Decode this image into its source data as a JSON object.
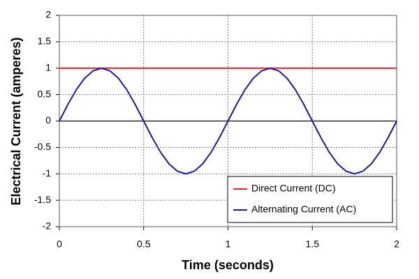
{
  "chart_data": {
    "type": "line",
    "x_label": "Time (seconds)",
    "y_label": "Electrical Current (amperes)",
    "x": [
      0,
      0.05,
      0.1,
      0.15,
      0.2,
      0.25,
      0.3,
      0.35,
      0.4,
      0.45,
      0.5,
      0.55,
      0.6,
      0.65,
      0.7,
      0.75,
      0.8,
      0.85,
      0.9,
      0.95,
      1,
      1.05,
      1.1,
      1.15,
      1.2,
      1.25,
      1.3,
      1.35,
      1.4,
      1.45,
      1.5,
      1.55,
      1.6,
      1.65,
      1.7,
      1.75,
      1.8,
      1.85,
      1.9,
      1.95,
      2
    ],
    "series": [
      {
        "name": "Direct Current (DC)",
        "color": "#e8201c",
        "values": [
          1,
          1,
          1,
          1,
          1,
          1,
          1,
          1,
          1,
          1,
          1,
          1,
          1,
          1,
          1,
          1,
          1,
          1,
          1,
          1,
          1,
          1,
          1,
          1,
          1,
          1,
          1,
          1,
          1,
          1,
          1,
          1,
          1,
          1,
          1,
          1,
          1,
          1,
          1,
          1,
          1
        ]
      },
      {
        "name": "Alternating Current (AC)",
        "color": "#1a1aa8",
        "values": [
          0,
          0.31,
          0.59,
          0.81,
          0.95,
          1,
          0.95,
          0.81,
          0.59,
          0.31,
          0,
          -0.31,
          -0.59,
          -0.81,
          -0.95,
          -1,
          -0.95,
          -0.81,
          -0.59,
          -0.31,
          0,
          0.31,
          0.59,
          0.81,
          0.95,
          1,
          0.95,
          0.81,
          0.59,
          0.31,
          0,
          -0.31,
          -0.59,
          -0.81,
          -0.95,
          -1,
          -0.95,
          -0.81,
          -0.59,
          -0.31,
          0
        ]
      }
    ],
    "xlim": [
      0,
      2
    ],
    "xticks": [
      0,
      0.5,
      1,
      1.5,
      2
    ],
    "ylim": [
      -2,
      2
    ],
    "yticks": [
      -2,
      -1.5,
      -1,
      -0.5,
      0,
      0.5,
      1,
      1.5,
      2
    ],
    "grid": true,
    "legend": "lower right"
  }
}
